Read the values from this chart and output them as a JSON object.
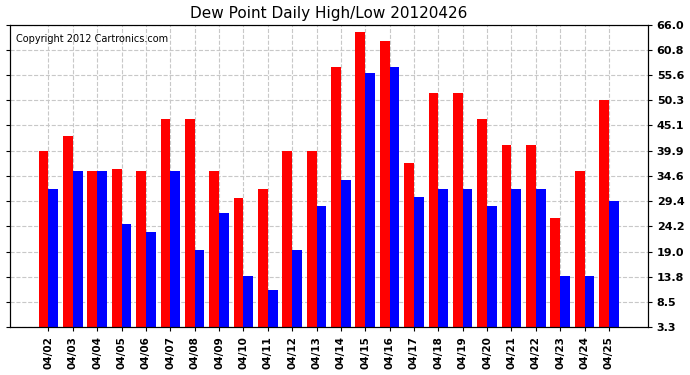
{
  "title": "Dew Point Daily High/Low 20120426",
  "copyright": "Copyright 2012 Cartronics.com",
  "dates": [
    "04/02",
    "04/03",
    "04/04",
    "04/05",
    "04/06",
    "04/07",
    "04/08",
    "04/09",
    "04/10",
    "04/11",
    "04/12",
    "04/13",
    "04/14",
    "04/15",
    "04/16",
    "04/17",
    "04/18",
    "04/19",
    "04/20",
    "04/21",
    "04/22",
    "04/23",
    "04/24",
    "04/25"
  ],
  "highs": [
    39.9,
    43.0,
    35.6,
    36.0,
    35.6,
    46.4,
    46.4,
    35.6,
    30.0,
    32.0,
    39.9,
    39.9,
    57.2,
    64.4,
    62.6,
    37.4,
    51.8,
    51.8,
    46.4,
    41.0,
    41.0,
    26.0,
    35.6,
    50.3
  ],
  "lows": [
    32.0,
    35.6,
    35.6,
    24.8,
    23.0,
    35.6,
    19.4,
    27.0,
    14.0,
    11.0,
    19.4,
    28.4,
    33.8,
    56.0,
    57.2,
    30.2,
    32.0,
    32.0,
    28.4,
    32.0,
    32.0,
    14.0,
    14.0,
    29.4
  ],
  "high_color": "#ff0000",
  "low_color": "#0000ff",
  "bg_color": "#ffffff",
  "plot_bg_color": "#ffffff",
  "grid_color": "#c8c8c8",
  "ylim_min": 3.3,
  "ylim_max": 66.0,
  "yticks": [
    3.3,
    8.5,
    13.8,
    19.0,
    24.2,
    29.4,
    34.6,
    39.9,
    45.1,
    50.3,
    55.6,
    60.8,
    66.0
  ]
}
